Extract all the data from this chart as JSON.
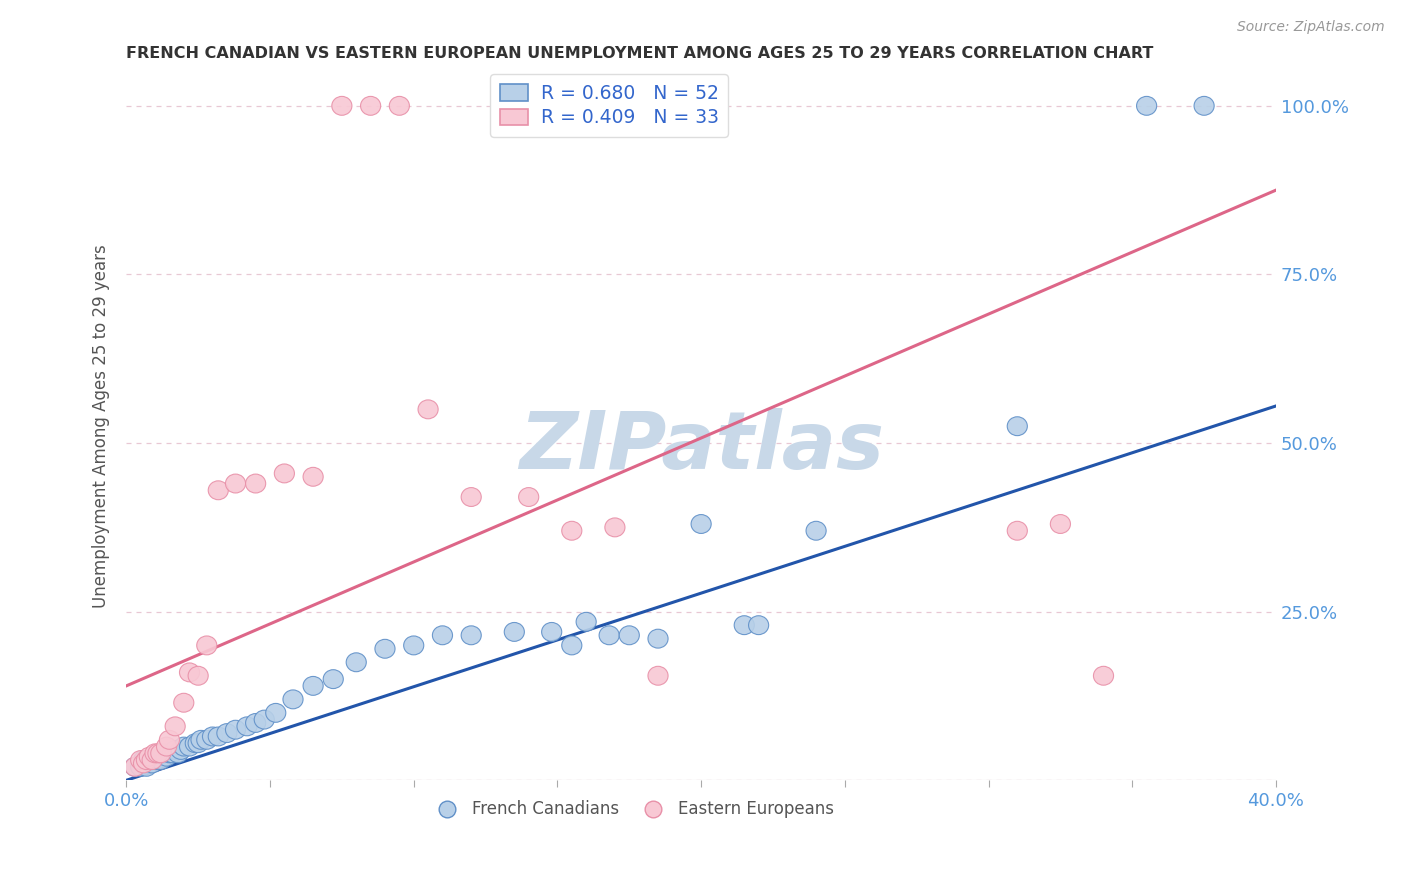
{
  "title": "FRENCH CANADIAN VS EASTERN EUROPEAN UNEMPLOYMENT AMONG AGES 25 TO 29 YEARS CORRELATION CHART",
  "source": "Source: ZipAtlas.com",
  "ylabel": "Unemployment Among Ages 25 to 29 years",
  "xlim": [
    0.0,
    0.4
  ],
  "ylim": [
    0.0,
    1.05
  ],
  "ytick_positions": [
    0.0,
    0.25,
    0.5,
    0.75,
    1.0
  ],
  "ytick_labels": [
    "",
    "25.0%",
    "50.0%",
    "75.0%",
    "100.0%"
  ],
  "xtick_positions": [
    0.0,
    0.05,
    0.1,
    0.15,
    0.2,
    0.25,
    0.3,
    0.35,
    0.4
  ],
  "xtick_labels": [
    "0.0%",
    "",
    "",
    "",
    "",
    "",
    "",
    "",
    "40.0%"
  ],
  "blue_R": 0.68,
  "blue_N": 52,
  "pink_R": 0.409,
  "pink_N": 33,
  "blue_fill_color": "#b8d0e8",
  "pink_fill_color": "#f8c8d4",
  "blue_edge_color": "#6090c8",
  "pink_edge_color": "#e890a8",
  "blue_line_color": "#2255aa",
  "pink_line_color": "#dd6688",
  "legend_text_color": "#3366cc",
  "watermark": "ZIPatlas",
  "watermark_color": "#c8d8e8",
  "background_color": "#ffffff",
  "grid_color": "#e8c8d4",
  "tick_color": "#5599dd",
  "blue_line_x": [
    0.0,
    0.4
  ],
  "blue_line_y": [
    0.0,
    0.555
  ],
  "pink_line_x": [
    0.0,
    0.4
  ],
  "pink_line_y": [
    0.14,
    0.875
  ],
  "blue_scatter_x": [
    0.003,
    0.005,
    0.006,
    0.007,
    0.008,
    0.009,
    0.01,
    0.011,
    0.012,
    0.013,
    0.014,
    0.015,
    0.016,
    0.017,
    0.018,
    0.019,
    0.02,
    0.022,
    0.024,
    0.025,
    0.026,
    0.028,
    0.03,
    0.032,
    0.035,
    0.038,
    0.042,
    0.045,
    0.048,
    0.052,
    0.058,
    0.065,
    0.072,
    0.08,
    0.09,
    0.1,
    0.11,
    0.12,
    0.135,
    0.148,
    0.155,
    0.16,
    0.168,
    0.175,
    0.185,
    0.2,
    0.215,
    0.22,
    0.24,
    0.31,
    0.355,
    0.375
  ],
  "blue_scatter_y": [
    0.02,
    0.02,
    0.03,
    0.02,
    0.03,
    0.025,
    0.03,
    0.035,
    0.03,
    0.04,
    0.035,
    0.04,
    0.04,
    0.045,
    0.04,
    0.045,
    0.05,
    0.05,
    0.055,
    0.055,
    0.06,
    0.06,
    0.065,
    0.065,
    0.07,
    0.075,
    0.08,
    0.085,
    0.09,
    0.1,
    0.12,
    0.14,
    0.15,
    0.175,
    0.195,
    0.2,
    0.215,
    0.215,
    0.22,
    0.22,
    0.2,
    0.235,
    0.215,
    0.215,
    0.21,
    0.38,
    0.23,
    0.23,
    0.37,
    0.525,
    1.0,
    1.0
  ],
  "pink_scatter_x": [
    0.003,
    0.005,
    0.006,
    0.007,
    0.008,
    0.009,
    0.01,
    0.011,
    0.012,
    0.014,
    0.015,
    0.017,
    0.02,
    0.022,
    0.025,
    0.028,
    0.032,
    0.038,
    0.045,
    0.055,
    0.065,
    0.075,
    0.085,
    0.095,
    0.105,
    0.12,
    0.14,
    0.155,
    0.17,
    0.185,
    0.31,
    0.325,
    0.34
  ],
  "pink_scatter_y": [
    0.02,
    0.03,
    0.025,
    0.03,
    0.035,
    0.03,
    0.04,
    0.04,
    0.04,
    0.05,
    0.06,
    0.08,
    0.115,
    0.16,
    0.155,
    0.2,
    0.43,
    0.44,
    0.44,
    0.455,
    0.45,
    1.0,
    1.0,
    1.0,
    0.55,
    0.42,
    0.42,
    0.37,
    0.375,
    0.155,
    0.37,
    0.38,
    0.155
  ]
}
